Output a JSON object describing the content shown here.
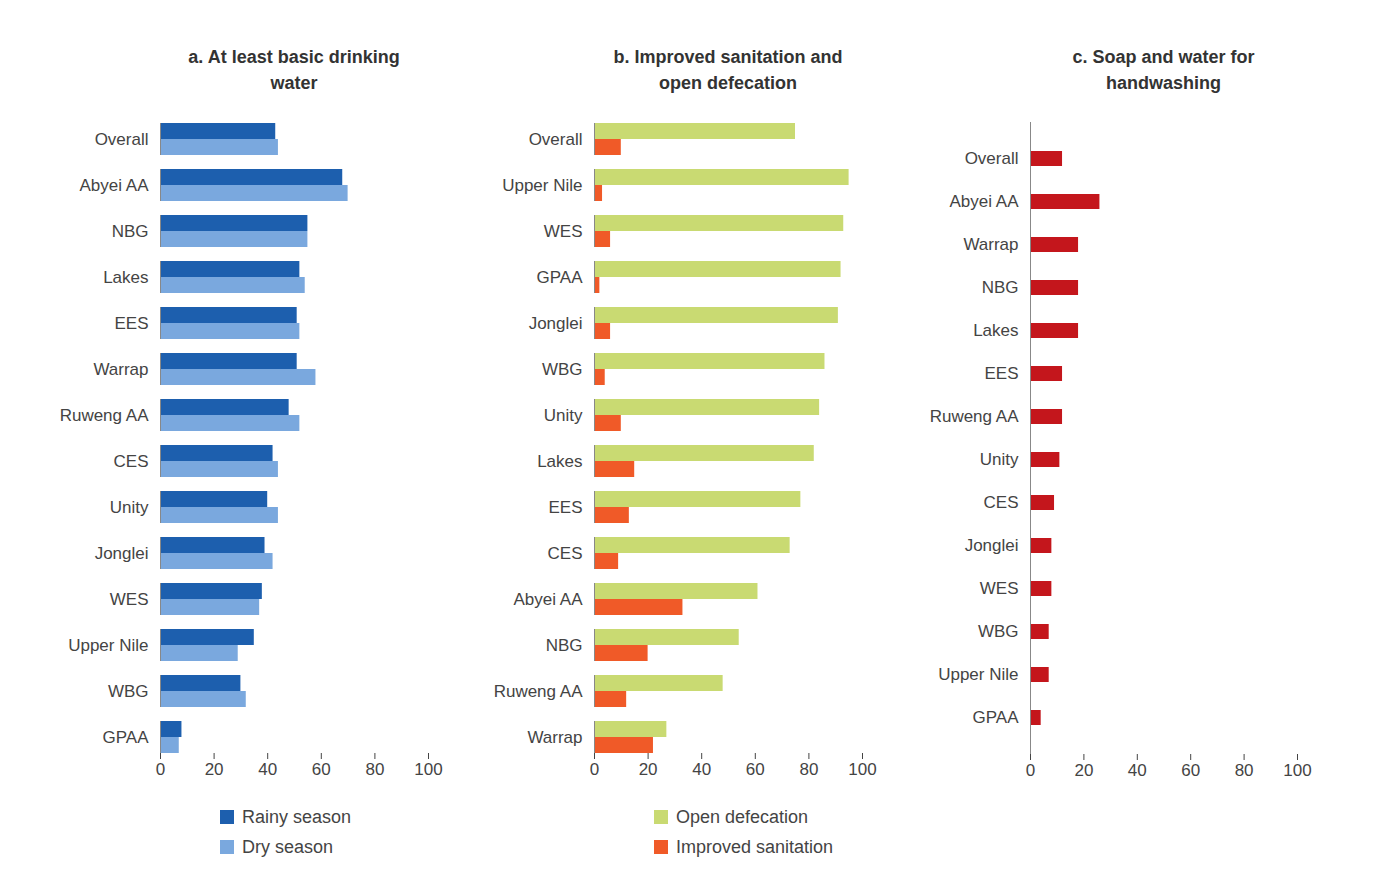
{
  "chart_data": [
    {
      "type": "bar",
      "orientation": "horizontal",
      "title": "a. At least basic drinking water",
      "categories": [
        "Overall",
        "Abyei AA",
        "NBG",
        "Lakes",
        "EES",
        "Warrap",
        "Ruweng AA",
        "CES",
        "Unity",
        "Jonglei",
        "WES",
        "Upper Nile",
        "WBG",
        "GPAA"
      ],
      "series": [
        {
          "name": "Rainy season",
          "color": "#1d5fae",
          "values": [
            43,
            68,
            55,
            52,
            51,
            51,
            48,
            42,
            40,
            39,
            38,
            35,
            30,
            8
          ]
        },
        {
          "name": "Dry season",
          "color": "#7aa8de",
          "values": [
            44,
            70,
            55,
            54,
            52,
            58,
            52,
            44,
            44,
            42,
            37,
            29,
            32,
            7
          ]
        }
      ],
      "xlim": [
        0,
        100
      ],
      "xticks": [
        0,
        20,
        40,
        60,
        80,
        100
      ],
      "legend": "bottom"
    },
    {
      "type": "bar",
      "orientation": "horizontal",
      "title": "b. Improved sanitation and open defecation",
      "categories": [
        "Overall",
        "Upper Nile",
        "WES",
        "GPAA",
        "Jonglei",
        "WBG",
        "Unity",
        "Lakes",
        "EES",
        "CES",
        "Abyei AA",
        "NBG",
        "Ruweng AA",
        "Warrap"
      ],
      "series": [
        {
          "name": "Open defecation",
          "color": "#c9da72",
          "values": [
            75,
            95,
            93,
            92,
            91,
            86,
            84,
            82,
            77,
            73,
            61,
            54,
            48,
            27
          ]
        },
        {
          "name": "Improved sanitation",
          "color": "#f05a28",
          "values": [
            10,
            3,
            6,
            2,
            6,
            4,
            10,
            15,
            13,
            9,
            33,
            20,
            12,
            22
          ]
        }
      ],
      "xlim": [
        0,
        100
      ],
      "xticks": [
        0,
        20,
        40,
        60,
        80,
        100
      ],
      "legend": "bottom"
    },
    {
      "type": "bar",
      "orientation": "horizontal",
      "title": "c. Soap and water for handwashing",
      "categories": [
        "Overall",
        "Abyei AA",
        "Warrap",
        "NBG",
        "Lakes",
        "EES",
        "Ruweng AA",
        "Unity",
        "CES",
        "Jonglei",
        "WES",
        "WBG",
        "Upper Nile",
        "GPAA"
      ],
      "values": [
        12,
        26,
        18,
        18,
        18,
        12,
        12,
        11,
        9,
        8,
        8,
        7,
        7,
        4
      ],
      "color": "#c4161c",
      "xlim": [
        0,
        100
      ],
      "xticks": [
        0,
        20,
        40,
        60,
        80,
        100
      ]
    }
  ]
}
